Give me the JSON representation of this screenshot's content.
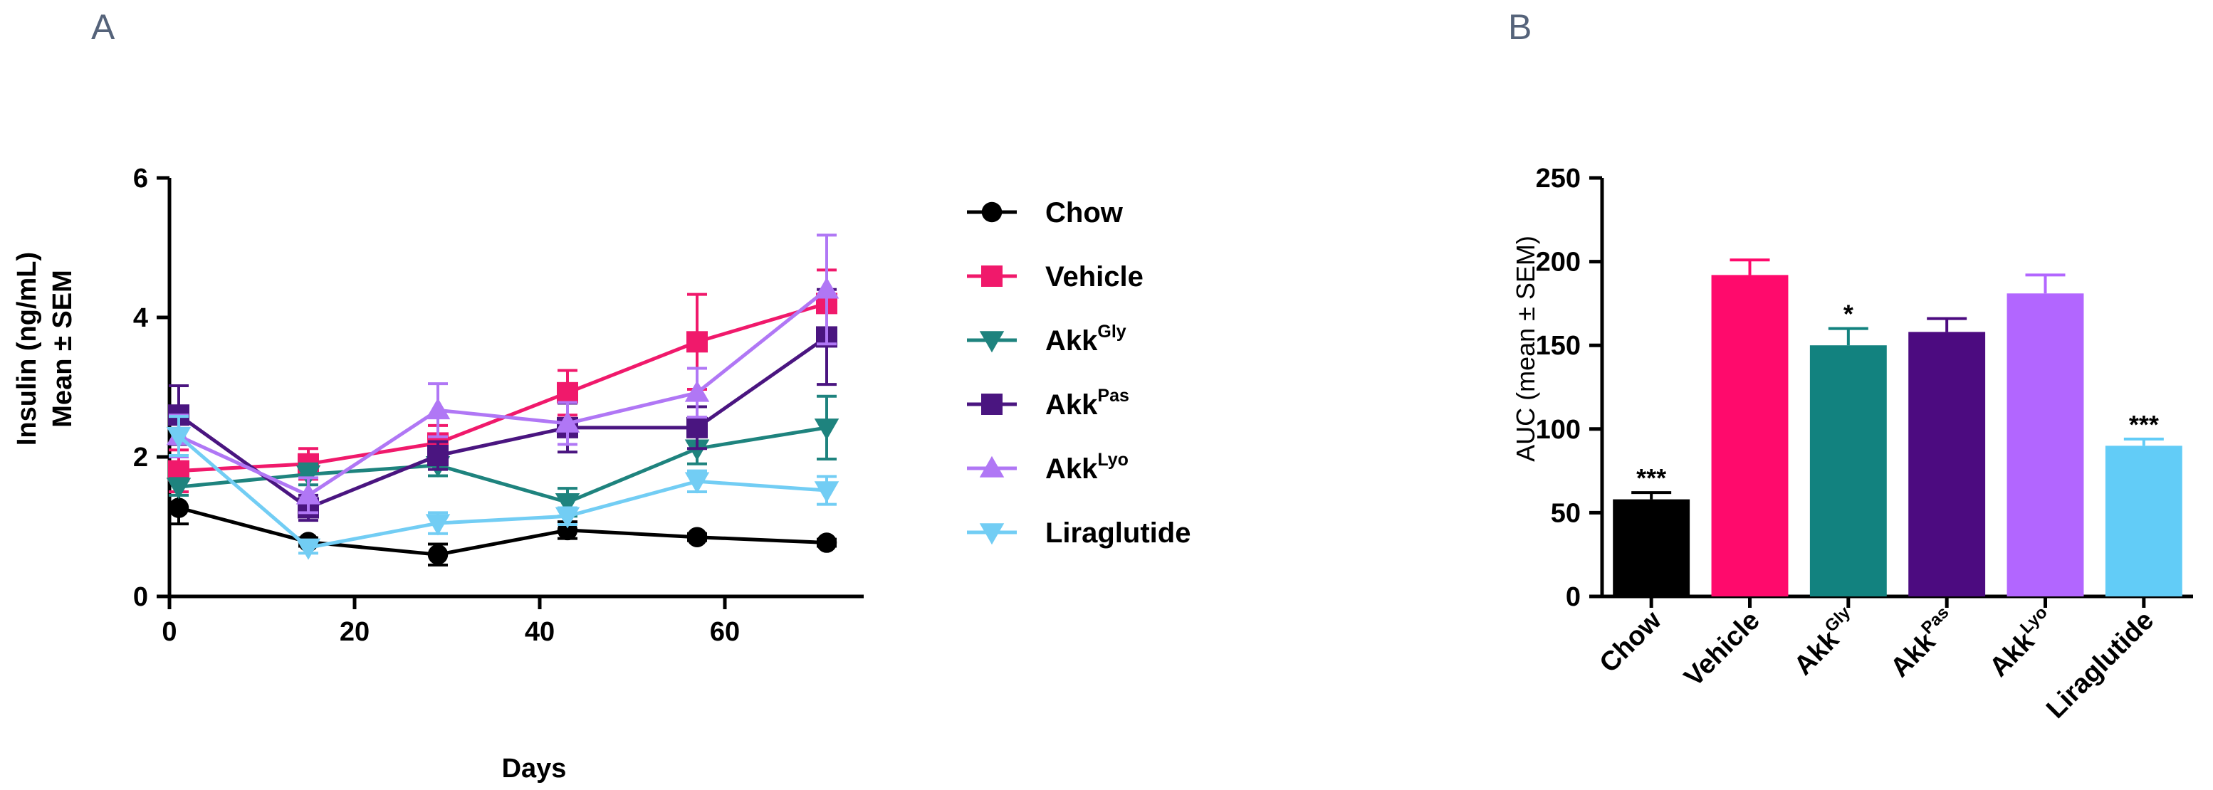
{
  "chart_data": [
    {
      "panel": "A",
      "type": "line",
      "xlabel": "Days",
      "ylabel_line1": "Insulin (ng/mL)",
      "ylabel_line2": "Mean ± SEM",
      "xlim": [
        0,
        75
      ],
      "ylim": [
        0,
        6
      ],
      "xticks": [
        0,
        20,
        40,
        60
      ],
      "yticks": [
        0,
        2,
        4,
        6
      ],
      "legend_position": "right",
      "x": [
        1,
        15,
        29,
        43,
        57,
        71
      ],
      "series": [
        {
          "name": "Chow",
          "base": "Chow",
          "sup": "",
          "color": "#000000",
          "marker": "circle",
          "values": [
            1.27,
            0.78,
            0.6,
            0.95,
            0.85,
            0.77
          ],
          "sem": [
            0.23,
            0.06,
            0.15,
            0.12,
            0.05,
            0.05
          ]
        },
        {
          "name": "Vehicle",
          "base": "Vehicle",
          "sup": "",
          "color": "#f0196b",
          "marker": "square",
          "values": [
            1.8,
            1.9,
            2.2,
            2.92,
            3.65,
            4.2
          ],
          "sem": [
            0.3,
            0.22,
            0.25,
            0.32,
            0.68,
            0.48
          ]
        },
        {
          "name": "AkkGly",
          "base": "Akk",
          "sup": "Gly",
          "color": "#1e837e",
          "marker": "triangle-down",
          "values": [
            1.57,
            1.75,
            1.88,
            1.35,
            2.12,
            2.42
          ],
          "sem": [
            0.12,
            0.15,
            0.15,
            0.2,
            0.22,
            0.45
          ]
        },
        {
          "name": "AkkPas",
          "base": "Akk",
          "sup": "Pas",
          "color": "#4a1580",
          "marker": "square",
          "values": [
            2.6,
            1.27,
            2.02,
            2.42,
            2.42,
            3.72
          ],
          "sem": [
            0.42,
            0.18,
            0.2,
            0.35,
            0.3,
            0.68
          ]
        },
        {
          "name": "AkkLyo",
          "base": "Akk",
          "sup": "Lyo",
          "color": "#b077f5",
          "marker": "triangle-up",
          "values": [
            2.3,
            1.45,
            2.67,
            2.48,
            2.92,
            4.4
          ],
          "sem": [
            0.3,
            0.25,
            0.38,
            0.3,
            0.35,
            0.78
          ]
        },
        {
          "name": "Liraglutide",
          "base": "Liraglutide",
          "sup": "",
          "color": "#72cdf4",
          "marker": "triangle-down",
          "values": [
            2.3,
            0.7,
            1.05,
            1.15,
            1.65,
            1.52
          ],
          "sem": [
            0.28,
            0.08,
            0.15,
            0.12,
            0.15,
            0.2
          ]
        }
      ]
    },
    {
      "panel": "B",
      "type": "bar",
      "ylabel": "AUC (mean ± SEM)",
      "ylim": [
        0,
        250
      ],
      "yticks": [
        0,
        50,
        100,
        150,
        200,
        250
      ],
      "categories": [
        {
          "base": "Chow",
          "sup": ""
        },
        {
          "base": "Vehicle",
          "sup": ""
        },
        {
          "base": "Akk",
          "sup": "Gly"
        },
        {
          "base": "Akk",
          "sup": "Pas"
        },
        {
          "base": "Akk",
          "sup": "Lyo"
        },
        {
          "base": "Liraglutide",
          "sup": ""
        }
      ],
      "values": [
        58,
        192,
        150,
        158,
        181,
        90
      ],
      "sem": [
        4,
        9,
        10,
        8,
        11,
        4
      ],
      "colors": [
        "#000000",
        "#ff0a6c",
        "#12827f",
        "#4c0b80",
        "#b266ff",
        "#62ccf7"
      ],
      "significance": [
        "***",
        "",
        "*",
        "",
        "",
        "***"
      ]
    }
  ]
}
